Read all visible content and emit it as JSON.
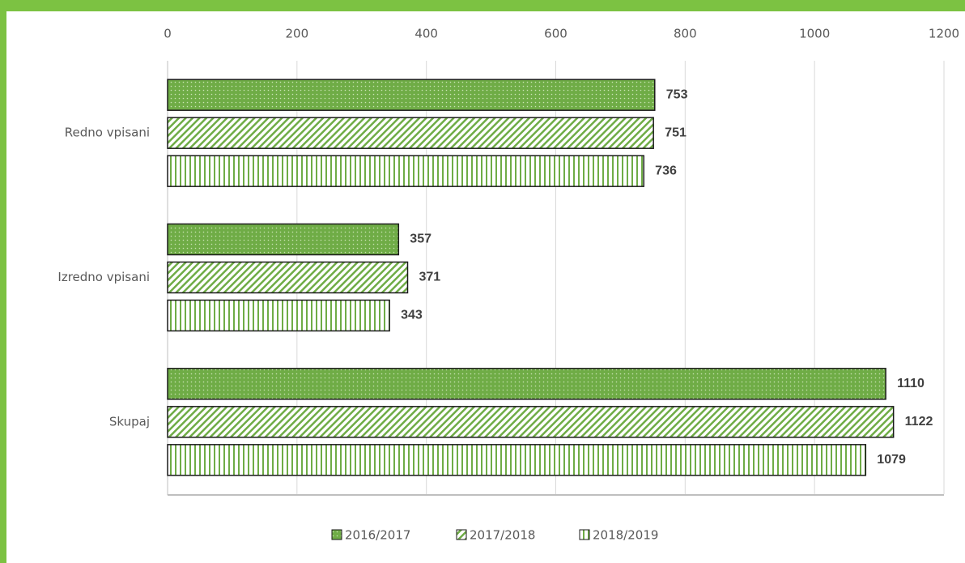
{
  "chart_data": {
    "type": "bar",
    "orientation": "horizontal",
    "categories": [
      "Redno vpisani",
      "Izredno vpisani",
      "Skupaj"
    ],
    "series": [
      {
        "name": "2016/2017",
        "color": "#6fac46",
        "pattern": "dots",
        "values": [
          753,
          357,
          1110
        ]
      },
      {
        "name": "2017/2018",
        "color": "#6fac46",
        "pattern": "diagonal",
        "values": [
          751,
          371,
          1122
        ]
      },
      {
        "name": "2018/2019",
        "color": "#6fac46",
        "pattern": "vertical",
        "values": [
          736,
          343,
          1079
        ]
      }
    ],
    "xlim": [
      0,
      1200
    ],
    "xticks": [
      0,
      200,
      400,
      600,
      800,
      1000,
      1200
    ],
    "grid": true,
    "legend": "bottom"
  }
}
